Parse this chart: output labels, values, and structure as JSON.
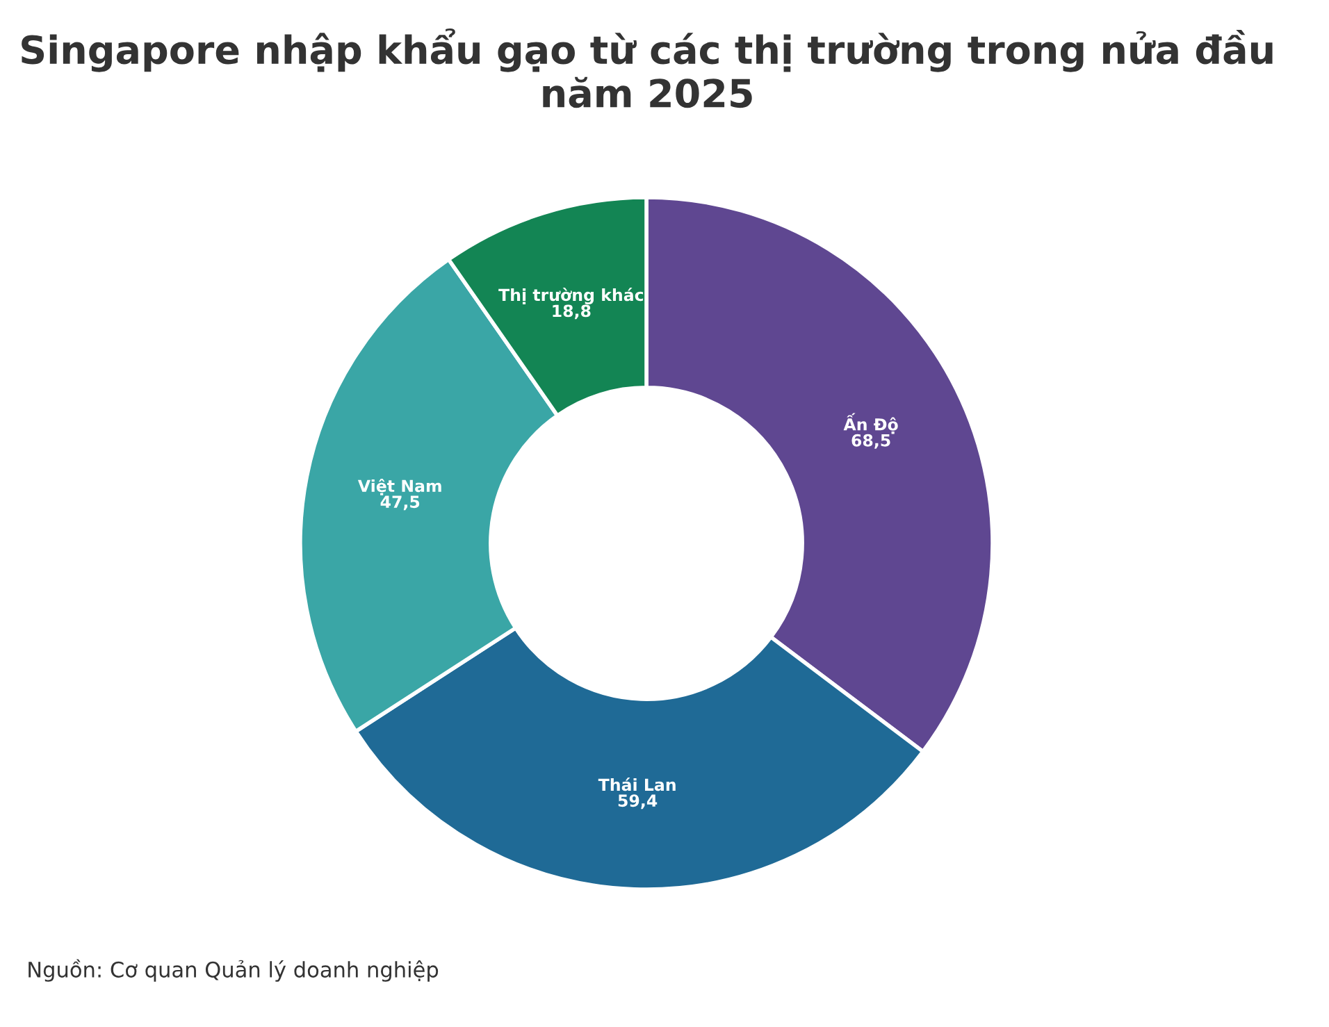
{
  "chart_data": {
    "type": "donut",
    "title": "Singapore nhập khẩu gạo từ các thị trường trong nửa đầu năm 2025",
    "categories": [
      "Ấn Độ",
      "Thái Lan",
      "Việt Nam",
      "Thị trường khác"
    ],
    "values": [
      68.5,
      59.4,
      47.5,
      18.8
    ],
    "value_labels": [
      "68,5",
      "59,4",
      "47,5",
      "18,8"
    ],
    "colors": [
      "#5f4791",
      "#1f6a96",
      "#3aa6a6",
      "#138554"
    ],
    "legend": false,
    "annotations": [
      "Nguồn: Cơ quan Quản lý doanh nghiệp"
    ]
  }
}
